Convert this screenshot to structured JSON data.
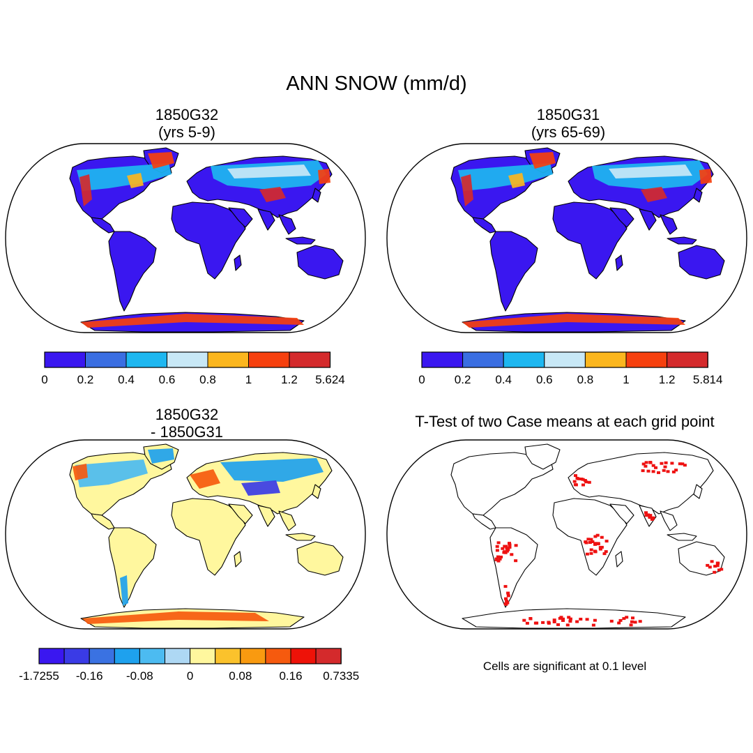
{
  "title": "ANN SNOW (mm/d)",
  "panels": [
    {
      "id": "p1",
      "title_line1": "1850G32",
      "title_line2": "(yrs 5-9)"
    },
    {
      "id": "p2",
      "title_line1": "1850G31",
      "title_line2": "(yrs 65-69)"
    },
    {
      "id": "p3",
      "title_line1": "1850G32",
      "title_line2": "- 1850G31"
    },
    {
      "id": "p4",
      "title_line1": "T-Test of two Case means at each grid point"
    }
  ],
  "colorbars": {
    "cb1": {
      "colors": [
        "#3a17f0",
        "#3a6ee2",
        "#1eb7f0",
        "#c8e8f6",
        "#fbb61e",
        "#f6400e",
        "#d42a2c"
      ],
      "labels": [
        "0",
        "0.2",
        "0.4",
        "0.6",
        "0.8",
        "1",
        "1.2",
        "5.624"
      ]
    },
    "cb2": {
      "colors": [
        "#3a17f0",
        "#3a6ee2",
        "#1eb7f0",
        "#c8e8f6",
        "#fbb61e",
        "#f6400e",
        "#d42a2c"
      ],
      "labels": [
        "0",
        "0.2",
        "0.4",
        "0.6",
        "0.8",
        "1",
        "1.2",
        "5.814"
      ]
    },
    "cb3": {
      "colors": [
        "#3a17f0",
        "#3a3be6",
        "#3a72e2",
        "#1ea1ee",
        "#4cbbf1",
        "#aed8f4",
        "#fff79e",
        "#fbc22c",
        "#f99a10",
        "#f65a0e",
        "#ee1208",
        "#d42a2c"
      ],
      "labels": [
        "-1.7255",
        "-0.16",
        "-0.08",
        "0",
        "0.08",
        "0.16",
        "0.7335"
      ]
    }
  },
  "note": "Cells are significant at 0.1 level",
  "colors": {
    "land_low": "#3a17f0",
    "land_diff": "#fff79e",
    "significant": "#ee1111"
  }
}
